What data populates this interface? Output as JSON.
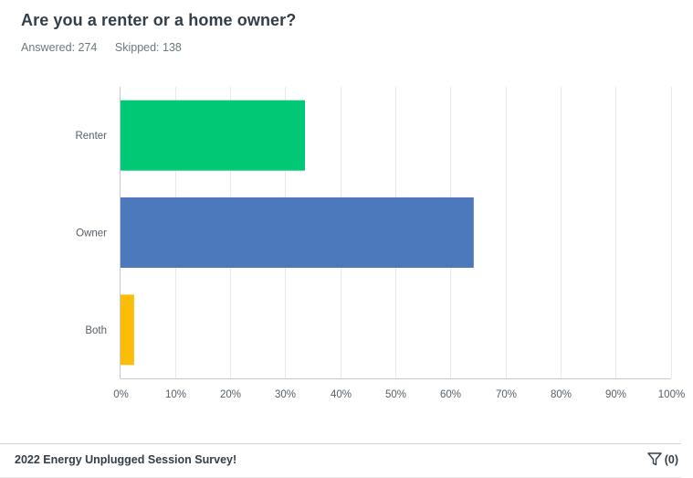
{
  "question": {
    "title": "Are you a renter or a home owner?",
    "answered_label": "Answered: 274",
    "skipped_label": "Skipped: 138"
  },
  "chart_data": {
    "type": "bar",
    "orientation": "horizontal",
    "categories": [
      "Renter",
      "Owner",
      "Both"
    ],
    "values": [
      33.58,
      64.23,
      2.55
    ],
    "colors": [
      "#00c875",
      "#4c79bb",
      "#fbbd08"
    ],
    "xlim": [
      0,
      100
    ],
    "x_ticks": [
      "0%",
      "10%",
      "20%",
      "30%",
      "40%",
      "50%",
      "60%",
      "70%",
      "80%",
      "90%",
      "100%"
    ],
    "grid": true,
    "title": "",
    "xlabel": "",
    "ylabel": ""
  },
  "footer": {
    "survey_name": "2022 Energy Unplugged Session Survey!",
    "filter_icon": "filter-icon",
    "filter_count": "(0)"
  }
}
